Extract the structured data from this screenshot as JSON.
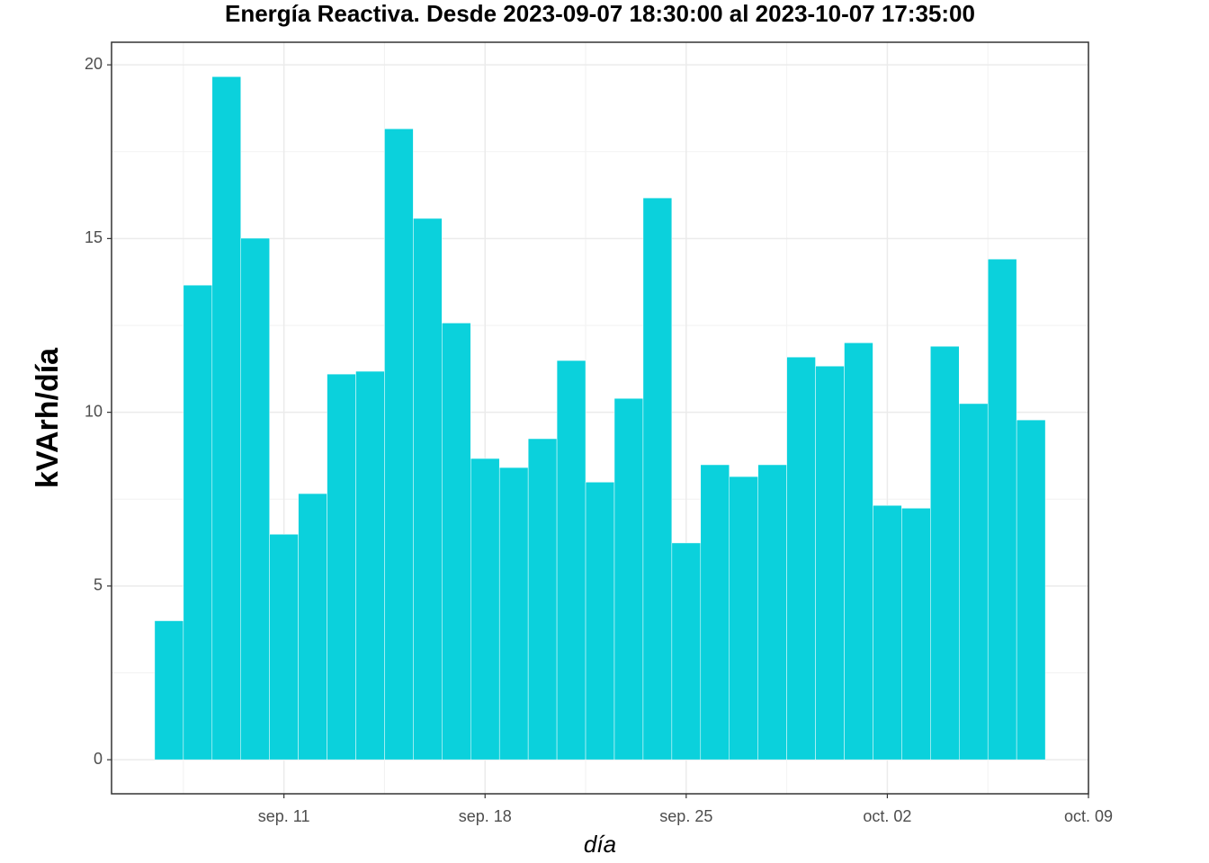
{
  "chart_data": {
    "type": "bar",
    "title": "Energía Reactiva. Desde  2023-09-07 18:30:00  al  2023-10-07 17:35:00",
    "x_label": "día",
    "y_label": "kVArh/día",
    "x": [
      "2023-09-07",
      "2023-09-08",
      "2023-09-09",
      "2023-09-10",
      "2023-09-11",
      "2023-09-12",
      "2023-09-13",
      "2023-09-14",
      "2023-09-15",
      "2023-09-16",
      "2023-09-17",
      "2023-09-18",
      "2023-09-19",
      "2023-09-20",
      "2023-09-21",
      "2023-09-22",
      "2023-09-23",
      "2023-09-24",
      "2023-09-25",
      "2023-09-26",
      "2023-09-27",
      "2023-09-28",
      "2023-09-29",
      "2023-09-30",
      "2023-10-01",
      "2023-10-02",
      "2023-10-03",
      "2023-10-04",
      "2023-10-05",
      "2023-10-06",
      "2023-10-07"
    ],
    "values": [
      4.0,
      13.66,
      19.66,
      15.01,
      6.49,
      7.66,
      11.1,
      11.18,
      18.16,
      15.58,
      12.57,
      8.67,
      8.41,
      9.24,
      11.49,
      7.99,
      10.4,
      16.17,
      6.24,
      8.49,
      8.15,
      8.49,
      11.59,
      11.33,
      12.0,
      7.32,
      7.24,
      11.9,
      10.25,
      14.41,
      9.78
    ],
    "color": "#0bd1dc",
    "xlim": [
      "2023-09-05",
      "2023-10-09"
    ],
    "xticks": [
      {
        "value": "2023-09-11",
        "label": "sep. 11"
      },
      {
        "value": "2023-09-18",
        "label": "sep. 18"
      },
      {
        "value": "2023-09-25",
        "label": "sep. 25"
      },
      {
        "value": "2023-10-02",
        "label": "oct. 02"
      },
      {
        "value": "2023-10-09",
        "label": "oct. 09"
      }
    ],
    "ylim": [
      -0.98,
      20.65
    ],
    "yticks": [
      0,
      5,
      10,
      15,
      20
    ],
    "grid": true
  }
}
